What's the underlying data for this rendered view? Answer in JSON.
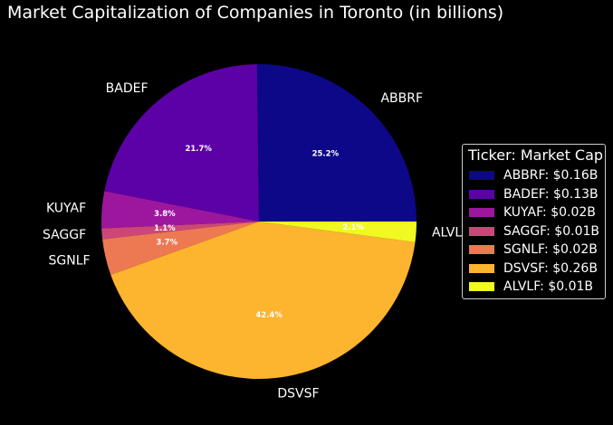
{
  "chart_data": {
    "type": "pie",
    "title": "Market Capitalization of Companies in Toronto (in billions)",
    "categories": [
      "ABBRF",
      "BADEF",
      "KUYAF",
      "SAGGF",
      "SGNLF",
      "DSVSF",
      "ALVLF"
    ],
    "values": [
      0.16,
      0.13,
      0.02,
      0.01,
      0.02,
      0.26,
      0.01
    ],
    "percent_labels": [
      "25.2%",
      "21.7%",
      "3.8%",
      "1.1%",
      "3.7%",
      "42.4%",
      "2.1%"
    ],
    "percents": [
      25.2,
      21.7,
      3.8,
      1.1,
      3.7,
      42.4,
      2.1
    ],
    "colors": [
      "#0d0887",
      "#5c01a6",
      "#9c179e",
      "#cc4778",
      "#ed7953",
      "#fdb42f",
      "#f0f921"
    ],
    "start_angle_deg": 0,
    "direction": "counterclockwise",
    "legend": {
      "title": "Ticker: Market Cap",
      "placement": "center-right",
      "entries": [
        "ABBRF: $0.16B",
        "BADEF: $0.13B",
        "KUYAF: $0.02B",
        "SAGGF: $0.01B",
        "SGNLF: $0.02B",
        "DSVSF: $0.26B",
        "ALVLF: $0.01B"
      ]
    }
  }
}
